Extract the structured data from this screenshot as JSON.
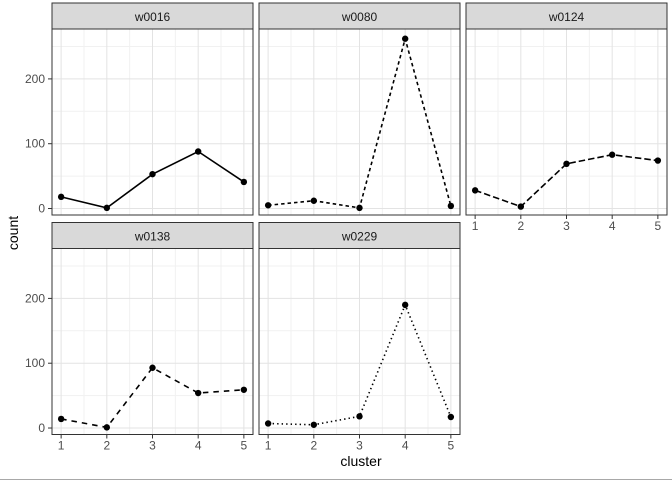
{
  "chart_data": {
    "type": "line",
    "title": "",
    "xlabel": "cluster",
    "ylabel": "count",
    "legend": "none",
    "grid": "major+minor",
    "facet_layout": {
      "ncol": 3,
      "order": [
        "w0016",
        "w0080",
        "w0124",
        "w0138",
        "w0229"
      ]
    },
    "x": [
      1,
      2,
      3,
      4,
      5
    ],
    "x_ticks": [
      "1",
      "2",
      "3",
      "4",
      "5"
    ],
    "y_ticks": [
      "0",
      "100",
      "200"
    ],
    "y_tick_values": [
      0,
      100,
      200
    ],
    "y_minor_values": [
      50,
      150,
      250
    ],
    "x_minor_values": [
      1.5,
      2.5,
      3.5,
      4.5
    ],
    "xlim": [
      0.8,
      5.2
    ],
    "ylim": [
      -10,
      277
    ],
    "series": [
      {
        "name": "w0016",
        "linetype": "solid",
        "values": [
          18,
          1,
          53,
          88,
          41
        ]
      },
      {
        "name": "w0080",
        "linetype": "dashed-short",
        "values": [
          5,
          12,
          1,
          262,
          4
        ]
      },
      {
        "name": "w0124",
        "linetype": "dashed-long",
        "values": [
          28,
          3,
          69,
          83,
          74
        ]
      },
      {
        "name": "w0138",
        "linetype": "longdash",
        "values": [
          14,
          1,
          93,
          54,
          59
        ]
      },
      {
        "name": "w0229",
        "linetype": "dotted",
        "values": [
          7,
          5,
          18,
          190,
          17
        ]
      }
    ],
    "colors": {
      "panel_bg": "#FFFFFF",
      "strip_fill": "#D9D9D9",
      "strip_text": "#1A1A1A",
      "panel_border": "#333333",
      "grid_major": "#E3E3E3",
      "grid_minor": "#F1F1F1",
      "line": "#000000",
      "point": "#000000",
      "axis_text": "#4D4D4D",
      "tick": "#333333"
    }
  }
}
